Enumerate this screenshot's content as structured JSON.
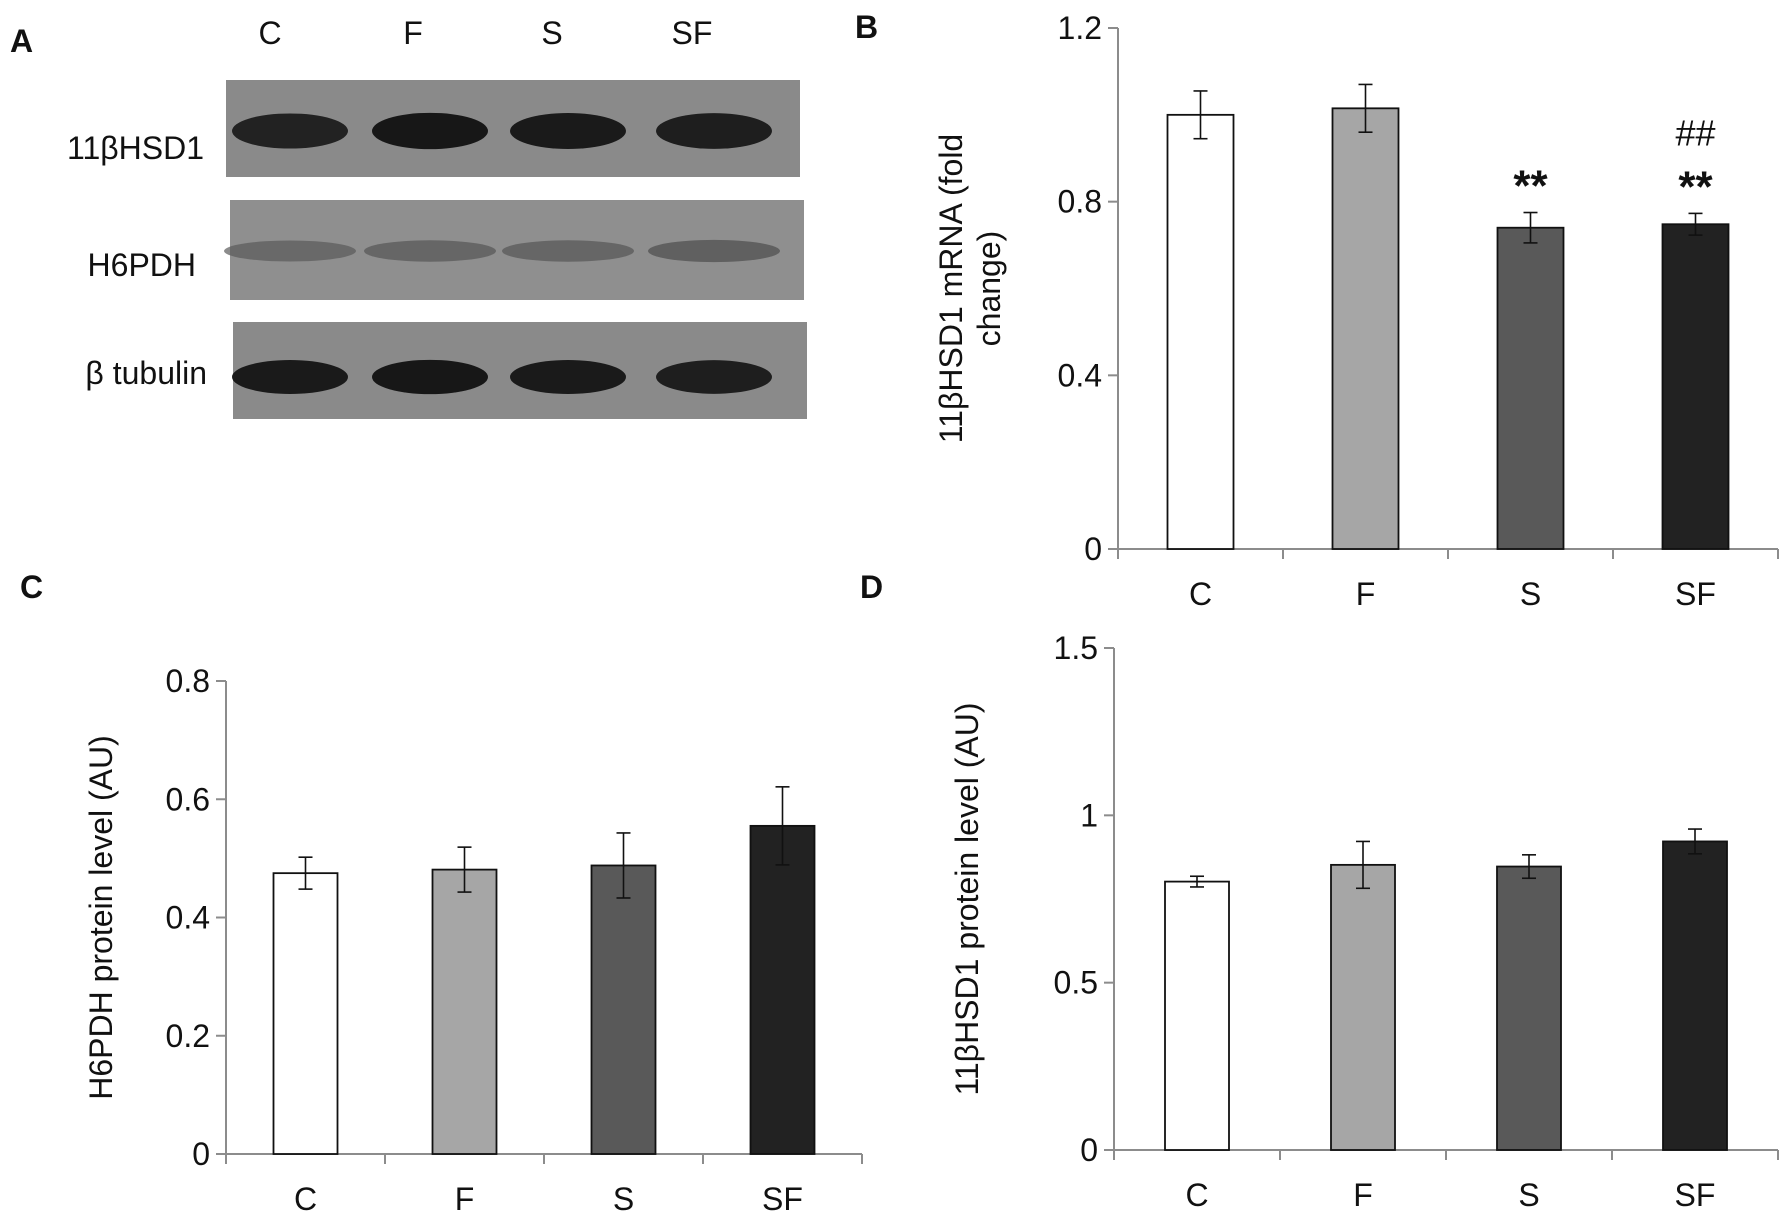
{
  "panel_a": {
    "letter": "A",
    "lanes": [
      "C",
      "F",
      "S",
      "SF"
    ],
    "blots": [
      {
        "label": "11βHSD1",
        "band_intensity": [
          0.85,
          0.92,
          0.9,
          0.88
        ]
      },
      {
        "label": "H6PDH",
        "band_intensity": [
          0.3,
          0.33,
          0.33,
          0.38
        ]
      },
      {
        "label": "β tubulin",
        "band_intensity": [
          0.9,
          0.92,
          0.9,
          0.88
        ]
      }
    ]
  },
  "chart_data": [
    {
      "panel": "B",
      "type": "bar",
      "title": "",
      "xlabel": "",
      "ylabel": "11βHSD1 mRNA (fold change)",
      "ylabel_lines": [
        "11βHSD1 mRNA (fold",
        "change)"
      ],
      "categories": [
        "C",
        "F",
        "S",
        "SF"
      ],
      "values": [
        1.0,
        1.015,
        0.74,
        0.748
      ],
      "errors": [
        0.055,
        0.055,
        0.035,
        0.025
      ],
      "bar_colors": [
        "#ffffff",
        "#a6a6a6",
        "#595959",
        "#222222"
      ],
      "ylim": [
        0,
        1.2
      ],
      "yticks": [
        0,
        0.4,
        0.8,
        1.2
      ],
      "ytick_labels": [
        "0",
        "0.4",
        "0.8",
        "1.2"
      ],
      "annotations": [
        {
          "category": "S",
          "lines": [
            "**"
          ]
        },
        {
          "category": "SF",
          "lines": [
            "##",
            "**"
          ]
        }
      ]
    },
    {
      "panel": "C",
      "type": "bar",
      "title": "",
      "xlabel": "",
      "ylabel": "H6PDH protein level (AU)",
      "ylabel_lines": [
        "H6PDH protein level (AU)"
      ],
      "categories": [
        "C",
        "F",
        "S",
        "SF"
      ],
      "values": [
        0.475,
        0.481,
        0.488,
        0.555
      ],
      "errors": [
        0.027,
        0.038,
        0.055,
        0.066
      ],
      "bar_colors": [
        "#ffffff",
        "#a6a6a6",
        "#595959",
        "#222222"
      ],
      "ylim": [
        0,
        0.8
      ],
      "yticks": [
        0,
        0.2,
        0.4,
        0.6,
        0.8
      ],
      "ytick_labels": [
        "0",
        "0.2",
        "0.4",
        "0.6",
        "0.8"
      ],
      "annotations": []
    },
    {
      "panel": "D",
      "type": "bar",
      "title": "",
      "xlabel": "",
      "ylabel": "11βHSD1 protein level (AU)",
      "ylabel_lines": [
        "11βHSD1 protein level (AU)"
      ],
      "categories": [
        "C",
        "F",
        "S",
        "SF"
      ],
      "values": [
        0.802,
        0.852,
        0.847,
        0.922
      ],
      "errors": [
        0.016,
        0.07,
        0.035,
        0.037
      ],
      "bar_colors": [
        "#ffffff",
        "#a6a6a6",
        "#595959",
        "#222222"
      ],
      "ylim": [
        0,
        1.5
      ],
      "yticks": [
        0,
        0.5,
        1,
        1.5
      ],
      "ytick_labels": [
        "0",
        "0.5",
        "1",
        "1.5"
      ],
      "annotations": []
    }
  ]
}
